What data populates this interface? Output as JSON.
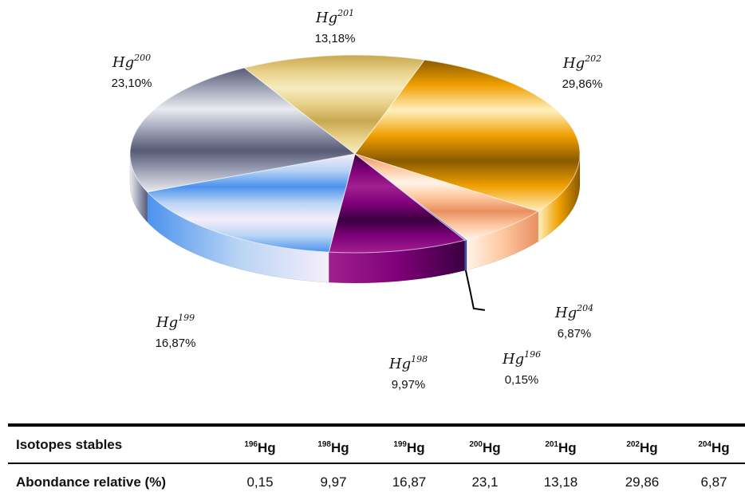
{
  "chart_data": {
    "type": "pie",
    "slices": [
      {
        "label": "Hg",
        "mass": "202",
        "value": 29.86,
        "text": "29,86%",
        "colors": [
          "#8a5a00",
          "#f0a000",
          "#fff0c0"
        ]
      },
      {
        "label": "Hg",
        "mass": "204",
        "value": 6.87,
        "text": "6,87%",
        "colors": [
          "#e89060",
          "#ffc8a0",
          "#fff4e8"
        ]
      },
      {
        "label": "Hg",
        "mass": "196",
        "value": 0.15,
        "text": "0,15%",
        "colors": [
          "#203080",
          "#3050c0",
          "#6080e0"
        ]
      },
      {
        "label": "Hg",
        "mass": "198",
        "value": 9.97,
        "text": "9,97%",
        "colors": [
          "#3a0040",
          "#80007a",
          "#a0208f"
        ]
      },
      {
        "label": "Hg",
        "mass": "199",
        "value": 16.87,
        "text": "16,87%",
        "colors": [
          "#f6eefb",
          "#b8d4f4",
          "#4b92ee"
        ]
      },
      {
        "label": "Hg",
        "mass": "200",
        "value": 23.1,
        "text": "23,10%",
        "colors": [
          "#565a74",
          "#9fa4b8",
          "#eaebef"
        ]
      },
      {
        "label": "Hg",
        "mass": "201",
        "value": 13.18,
        "text": "13,18%",
        "colors": [
          "#c8a850",
          "#e8d088",
          "#f6ecc0"
        ]
      }
    ]
  },
  "table": {
    "row1_label": "Isotopes stables",
    "row2_label": "Abondance relative (%)",
    "columns": [
      {
        "mass": "196",
        "symbol": "Hg",
        "value": "0,15"
      },
      {
        "mass": "198",
        "symbol": "Hg",
        "value": "9,97"
      },
      {
        "mass": "199",
        "symbol": "Hg",
        "value": "16,87"
      },
      {
        "mass": "200",
        "symbol": "Hg",
        "value": "23,1"
      },
      {
        "mass": "201",
        "symbol": "Hg",
        "value": "13,18"
      },
      {
        "mass": "202",
        "symbol": "Hg",
        "value": "29,86"
      },
      {
        "mass": "204",
        "symbol": "Hg",
        "value": "6,87"
      }
    ]
  }
}
